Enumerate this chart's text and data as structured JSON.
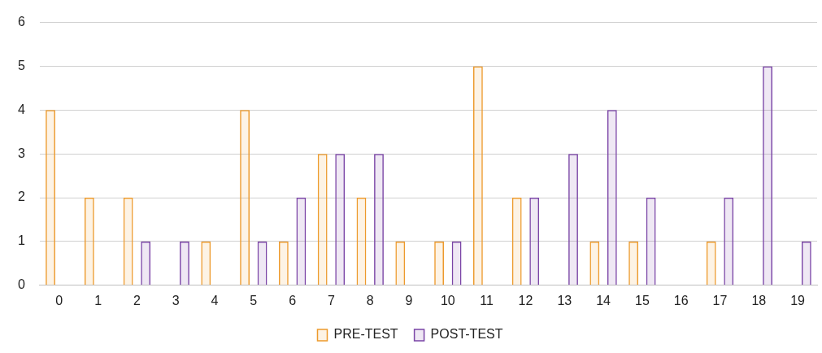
{
  "chart_data": {
    "type": "bar",
    "categories": [
      "0",
      "1",
      "2",
      "3",
      "4",
      "5",
      "6",
      "7",
      "8",
      "9",
      "10",
      "11",
      "12",
      "13",
      "14",
      "15",
      "16",
      "17",
      "18",
      "19"
    ],
    "series": [
      {
        "name": "PRE-TEST",
        "color": "#ed9a2c",
        "values": [
          4,
          2,
          2,
          0,
          1,
          4,
          1,
          3,
          2,
          1,
          1,
          5,
          2,
          0,
          1,
          1,
          0,
          1,
          0,
          0
        ]
      },
      {
        "name": "POST-TEST",
        "color": "#7a44a6",
        "values": [
          0,
          0,
          1,
          1,
          0,
          1,
          2,
          3,
          3,
          0,
          1,
          0,
          2,
          3,
          4,
          2,
          0,
          2,
          5,
          1
        ]
      }
    ],
    "ylim": [
      0,
      6
    ],
    "yticks": [
      0,
      1,
      2,
      3,
      4,
      5,
      6
    ],
    "grid": "y",
    "legend": "bottom"
  }
}
